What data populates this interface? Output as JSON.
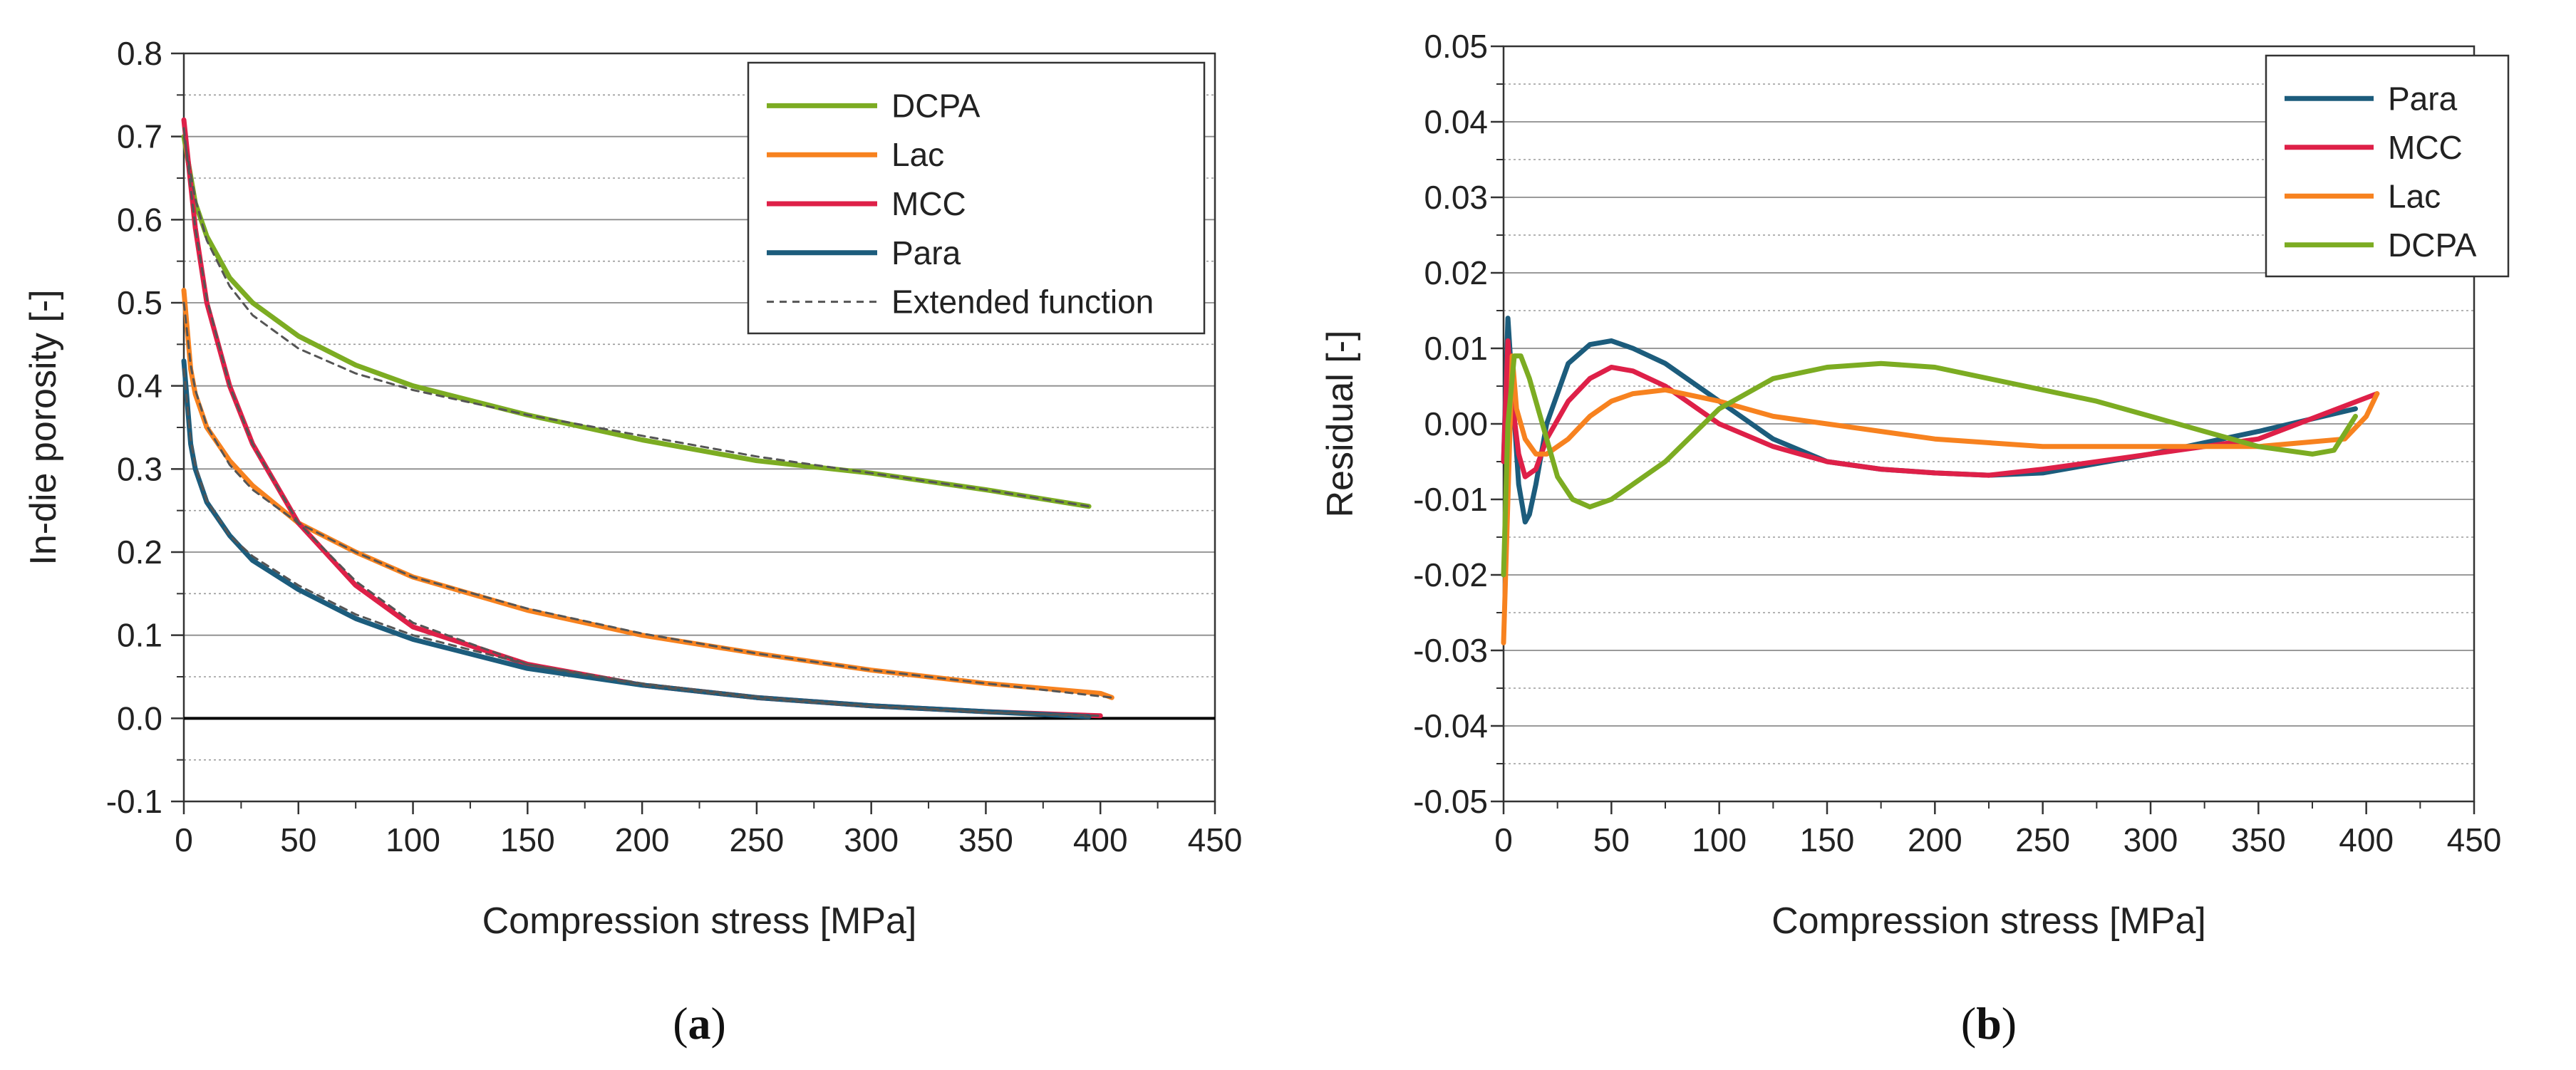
{
  "chart_data": [
    {
      "id": "a",
      "type": "line",
      "panel_label": "a",
      "xlabel": "Compression stress [MPa]",
      "ylabel": "In-die porosity [-]",
      "xlim": [
        0,
        450
      ],
      "ylim": [
        -0.1,
        0.8
      ],
      "xticks": [
        0,
        50,
        100,
        150,
        200,
        250,
        300,
        350,
        400,
        450
      ],
      "xtick_labels": [
        "0",
        "50",
        "100",
        "150",
        "200",
        "250",
        "300",
        "350",
        "400",
        "450"
      ],
      "yticks": [
        -0.1,
        0.0,
        0.1,
        0.2,
        0.3,
        0.4,
        0.5,
        0.6,
        0.7,
        0.8
      ],
      "ytick_labels": [
        "-0.1",
        "0.0",
        "0.1",
        "0.2",
        "0.3",
        "0.4",
        "0.5",
        "0.6",
        "0.7",
        "0.8"
      ],
      "minor_grid_y": [
        -0.05,
        0.05,
        0.15,
        0.25,
        0.35,
        0.45,
        0.55,
        0.65,
        0.75
      ],
      "zero_line": true,
      "legend": [
        "DCPA",
        "Lac",
        "MCC",
        "Para",
        "Extended function"
      ],
      "legend_position": "top-right",
      "series": [
        {
          "name": "DCPA",
          "color": "#7cac22",
          "dashed": false,
          "x": [
            0,
            5,
            10,
            20,
            30,
            50,
            75,
            100,
            150,
            200,
            250,
            300,
            350,
            395
          ],
          "y": [
            0.7,
            0.62,
            0.58,
            0.53,
            0.5,
            0.46,
            0.425,
            0.4,
            0.365,
            0.335,
            0.31,
            0.295,
            0.275,
            0.255
          ]
        },
        {
          "name": "Lac",
          "color": "#f7821f",
          "dashed": false,
          "x": [
            0,
            3,
            5,
            10,
            20,
            30,
            50,
            75,
            100,
            150,
            200,
            250,
            300,
            350,
            400,
            405
          ],
          "y": [
            0.515,
            0.42,
            0.39,
            0.35,
            0.31,
            0.28,
            0.235,
            0.2,
            0.17,
            0.13,
            0.1,
            0.078,
            0.058,
            0.042,
            0.03,
            0.025
          ]
        },
        {
          "name": "MCC",
          "color": "#de2048",
          "dashed": false,
          "x": [
            0,
            5,
            10,
            20,
            30,
            50,
            75,
            100,
            150,
            200,
            250,
            300,
            350,
            400
          ],
          "y": [
            0.72,
            0.59,
            0.5,
            0.4,
            0.33,
            0.235,
            0.16,
            0.11,
            0.065,
            0.04,
            0.025,
            0.015,
            0.008,
            0.003
          ]
        },
        {
          "name": "Para",
          "color": "#1c5c7c",
          "dashed": false,
          "x": [
            0,
            3,
            5,
            10,
            20,
            30,
            50,
            75,
            100,
            150,
            200,
            250,
            300,
            350,
            395
          ],
          "y": [
            0.43,
            0.33,
            0.3,
            0.26,
            0.22,
            0.19,
            0.155,
            0.12,
            0.095,
            0.06,
            0.04,
            0.025,
            0.015,
            0.008,
            0.002
          ]
        },
        {
          "name": "Extended function (DCPA)",
          "color": "#555555",
          "dashed": true,
          "x": [
            0,
            5,
            10,
            20,
            30,
            50,
            75,
            100,
            150,
            200,
            250,
            300,
            350,
            395
          ],
          "y": [
            0.7,
            0.625,
            0.575,
            0.52,
            0.485,
            0.445,
            0.415,
            0.395,
            0.365,
            0.34,
            0.315,
            0.295,
            0.275,
            0.255
          ]
        },
        {
          "name": "Extended function (Lac)",
          "color": "#555555",
          "dashed": true,
          "x": [
            0,
            3,
            5,
            10,
            20,
            30,
            50,
            75,
            100,
            150,
            200,
            250,
            300,
            350,
            405
          ],
          "y": [
            0.5,
            0.425,
            0.395,
            0.352,
            0.305,
            0.275,
            0.235,
            0.2,
            0.17,
            0.132,
            0.102,
            0.078,
            0.058,
            0.042,
            0.025
          ]
        },
        {
          "name": "Extended function (MCC)",
          "color": "#555555",
          "dashed": true,
          "x": [
            0,
            5,
            10,
            20,
            30,
            50,
            75,
            100,
            150,
            200,
            250,
            300,
            350,
            400
          ],
          "y": [
            0.71,
            0.59,
            0.505,
            0.4,
            0.33,
            0.235,
            0.165,
            0.115,
            0.065,
            0.04,
            0.024,
            0.014,
            0.007,
            0.003
          ]
        },
        {
          "name": "Extended function (Para)",
          "color": "#555555",
          "dashed": true,
          "x": [
            0,
            3,
            5,
            10,
            20,
            30,
            50,
            75,
            100,
            150,
            200,
            250,
            300,
            350,
            395
          ],
          "y": [
            0.42,
            0.335,
            0.305,
            0.262,
            0.22,
            0.195,
            0.16,
            0.125,
            0.1,
            0.065,
            0.042,
            0.026,
            0.015,
            0.008,
            0.002
          ]
        }
      ]
    },
    {
      "id": "b",
      "type": "line",
      "panel_label": "b",
      "xlabel": "Compression stress [MPa]",
      "ylabel": "Residual [-]",
      "xlim": [
        0,
        450
      ],
      "ylim": [
        -0.05,
        0.05
      ],
      "xticks": [
        0,
        50,
        100,
        150,
        200,
        250,
        300,
        350,
        400,
        450
      ],
      "xtick_labels": [
        "0",
        "50",
        "100",
        "150",
        "200",
        "250",
        "300",
        "350",
        "400",
        "450"
      ],
      "yticks": [
        -0.05,
        -0.04,
        -0.03,
        -0.02,
        -0.01,
        0.0,
        0.01,
        0.02,
        0.03,
        0.04,
        0.05
      ],
      "ytick_labels": [
        "-0.05",
        "-0.04",
        "-0.03",
        "-0.02",
        "-0.01",
        "0.00",
        "0.01",
        "0.02",
        "0.03",
        "0.04",
        "0.05"
      ],
      "minor_grid_y": [
        -0.045,
        -0.035,
        -0.025,
        -0.015,
        -0.005,
        0.005,
        0.015,
        0.025,
        0.035,
        0.045
      ],
      "zero_line": false,
      "legend": [
        "Para",
        "MCC",
        "Lac",
        "DCPA"
      ],
      "legend_position": "top-right",
      "series": [
        {
          "name": "Para",
          "color": "#1c5c7c",
          "dashed": false,
          "x": [
            0,
            2,
            4,
            7,
            10,
            12,
            15,
            20,
            30,
            40,
            50,
            60,
            75,
            100,
            125,
            150,
            175,
            200,
            225,
            250,
            300,
            350,
            395
          ],
          "y": [
            -0.005,
            0.014,
            0.005,
            -0.008,
            -0.013,
            -0.012,
            -0.008,
            0.0,
            0.008,
            0.0105,
            0.011,
            0.01,
            0.008,
            0.003,
            -0.002,
            -0.005,
            -0.006,
            -0.0065,
            -0.0068,
            -0.0065,
            -0.004,
            -0.001,
            0.002
          ]
        },
        {
          "name": "MCC",
          "color": "#de2048",
          "dashed": false,
          "x": [
            0,
            2,
            4,
            7,
            10,
            15,
            20,
            30,
            40,
            50,
            60,
            75,
            100,
            125,
            150,
            175,
            200,
            225,
            250,
            300,
            350,
            405
          ],
          "y": [
            -0.005,
            0.011,
            0.003,
            -0.004,
            -0.007,
            -0.006,
            -0.002,
            0.003,
            0.006,
            0.0075,
            0.007,
            0.005,
            0.0,
            -0.003,
            -0.005,
            -0.006,
            -0.0065,
            -0.0068,
            -0.006,
            -0.004,
            -0.002,
            0.004
          ]
        },
        {
          "name": "Lac",
          "color": "#f7821f",
          "dashed": false,
          "x": [
            0,
            2,
            4,
            6,
            10,
            15,
            20,
            30,
            40,
            50,
            60,
            75,
            100,
            125,
            150,
            200,
            250,
            300,
            350,
            390,
            400,
            405
          ],
          "y": [
            -0.029,
            -0.01,
            0.009,
            0.002,
            -0.002,
            -0.004,
            -0.004,
            -0.002,
            0.001,
            0.003,
            0.004,
            0.0045,
            0.003,
            0.001,
            0.0,
            -0.002,
            -0.003,
            -0.003,
            -0.003,
            -0.002,
            0.001,
            0.004
          ]
        },
        {
          "name": "DCPA",
          "color": "#7cac22",
          "dashed": false,
          "x": [
            0,
            2,
            5,
            8,
            12,
            18,
            25,
            32,
            40,
            50,
            60,
            75,
            100,
            125,
            150,
            175,
            200,
            225,
            250,
            275,
            300,
            325,
            350,
            375,
            385,
            395
          ],
          "y": [
            -0.02,
            0.0,
            0.009,
            0.009,
            0.006,
            0.0,
            -0.007,
            -0.01,
            -0.011,
            -0.01,
            -0.008,
            -0.005,
            0.002,
            0.006,
            0.0075,
            0.008,
            0.0075,
            0.006,
            0.0045,
            0.003,
            0.001,
            -0.001,
            -0.003,
            -0.004,
            -0.0035,
            0.001
          ]
        }
      ]
    }
  ]
}
